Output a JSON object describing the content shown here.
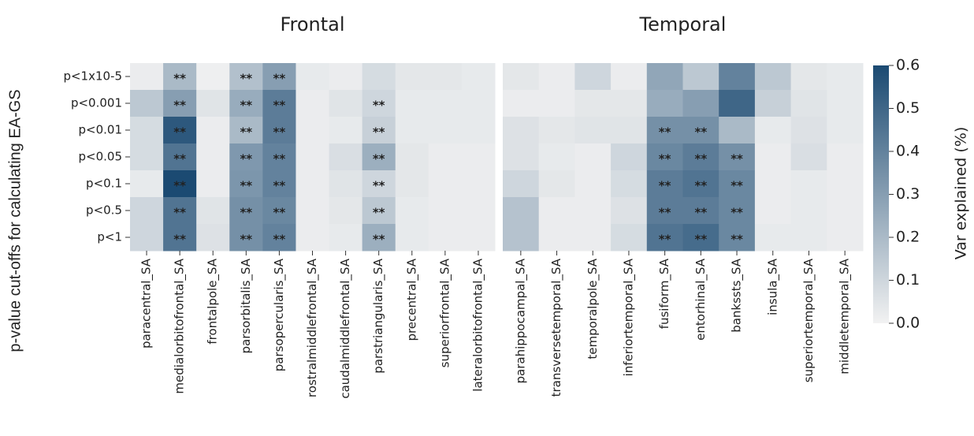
{
  "chart_data": [
    {
      "type": "heatmap",
      "title": "Frontal",
      "ylabel": "p-value cut-offs for calculating EA-GS",
      "rows": [
        "p<1x10-5",
        "p<0.001",
        "p<0.01",
        "p<0.05",
        "p<0.1",
        "p<0.5",
        "p<1"
      ],
      "categories": [
        "paracentral_SA",
        "medialorbitofrontal_SA",
        "frontalpole_SA",
        "parsorbitalis_SA",
        "parsopercularis_SA",
        "rostralmiddlefrontal_SA",
        "caudalmiddlefrontal_SA",
        "parstriangularis_SA",
        "precentral_SA",
        "superiorfrontal_SA",
        "lateralorbitofrontal_SA"
      ],
      "values": [
        [
          0.02,
          0.2,
          0.01,
          0.18,
          0.3,
          0.03,
          0.02,
          0.08,
          0.04,
          0.04,
          0.03
        ],
        [
          0.15,
          0.3,
          0.05,
          0.25,
          0.42,
          0.02,
          0.05,
          0.1,
          0.03,
          0.03,
          0.03
        ],
        [
          0.08,
          0.55,
          0.02,
          0.2,
          0.42,
          0.02,
          0.03,
          0.12,
          0.03,
          0.03,
          0.03
        ],
        [
          0.08,
          0.45,
          0.02,
          0.32,
          0.4,
          0.02,
          0.07,
          0.24,
          0.04,
          0.02,
          0.02
        ],
        [
          0.03,
          0.6,
          0.02,
          0.33,
          0.4,
          0.02,
          0.05,
          0.1,
          0.04,
          0.02,
          0.02
        ],
        [
          0.1,
          0.45,
          0.05,
          0.35,
          0.38,
          0.02,
          0.04,
          0.15,
          0.03,
          0.02,
          0.02
        ],
        [
          0.1,
          0.45,
          0.06,
          0.35,
          0.4,
          0.02,
          0.03,
          0.24,
          0.03,
          0.02,
          0.02
        ]
      ],
      "annotations": [
        [
          null,
          "**",
          null,
          "**",
          "**",
          null,
          null,
          null,
          null,
          null,
          null
        ],
        [
          null,
          "**",
          null,
          "**",
          "**",
          null,
          null,
          "**",
          null,
          null,
          null
        ],
        [
          null,
          "**",
          null,
          "**",
          "**",
          null,
          null,
          "**",
          null,
          null,
          null
        ],
        [
          null,
          "**",
          null,
          "**",
          "**",
          null,
          null,
          "**",
          null,
          null,
          null
        ],
        [
          null,
          "**",
          null,
          "**",
          "**",
          null,
          null,
          "**",
          null,
          null,
          null
        ],
        [
          null,
          "**",
          null,
          "**",
          "**",
          null,
          null,
          "**",
          null,
          null,
          null
        ],
        [
          null,
          "**",
          null,
          "**",
          "**",
          null,
          null,
          "**",
          null,
          null,
          null
        ]
      ]
    },
    {
      "type": "heatmap",
      "title": "Temporal",
      "categories": [
        "parahippocampal_SA",
        "transversetemporal_SA",
        "temporalpole_SA",
        "inferiortemporal_SA",
        "fusiform_SA",
        "entorhinal_SA",
        "bankssts_SA",
        "insula_SA",
        "superiortemporal_SA",
        "middletemporal_SA"
      ],
      "values": [
        [
          0.04,
          0.02,
          0.1,
          0.02,
          0.27,
          0.15,
          0.4,
          0.15,
          0.04,
          0.03
        ],
        [
          0.02,
          0.02,
          0.04,
          0.04,
          0.25,
          0.3,
          0.5,
          0.12,
          0.05,
          0.03
        ],
        [
          0.06,
          0.04,
          0.05,
          0.05,
          0.35,
          0.35,
          0.2,
          0.03,
          0.06,
          0.03
        ],
        [
          0.06,
          0.03,
          0.02,
          0.1,
          0.38,
          0.42,
          0.35,
          0.02,
          0.07,
          0.02
        ],
        [
          0.1,
          0.04,
          0.02,
          0.08,
          0.42,
          0.45,
          0.38,
          0.02,
          0.03,
          0.02
        ],
        [
          0.17,
          0.02,
          0.02,
          0.06,
          0.42,
          0.42,
          0.38,
          0.02,
          0.03,
          0.02
        ],
        [
          0.17,
          0.02,
          0.02,
          0.08,
          0.45,
          0.48,
          0.38,
          0.03,
          0.03,
          0.02
        ]
      ],
      "annotations": [
        [
          null,
          null,
          null,
          null,
          null,
          null,
          null,
          null,
          null,
          null
        ],
        [
          null,
          null,
          null,
          null,
          null,
          null,
          null,
          null,
          null,
          null
        ],
        [
          null,
          null,
          null,
          null,
          "**",
          "**",
          null,
          null,
          null,
          null
        ],
        [
          null,
          null,
          null,
          null,
          "**",
          "**",
          "**",
          null,
          null,
          null
        ],
        [
          null,
          null,
          null,
          null,
          "**",
          "**",
          "**",
          null,
          null,
          null
        ],
        [
          null,
          null,
          null,
          null,
          "**",
          "**",
          "**",
          null,
          null,
          null
        ],
        [
          null,
          null,
          null,
          null,
          "**",
          "**",
          "**",
          null,
          null,
          null
        ]
      ],
      "colorbar": {
        "label": "Var explained (%)",
        "zlim": [
          0,
          0.6
        ],
        "zticks": [
          {
            "value": 0,
            "label": "0.0"
          },
          0.1,
          0.2,
          0.3,
          0.4,
          0.5,
          0.6
        ],
        "colors": [
          "#f2f2f2",
          "#1b4a72"
        ]
      }
    }
  ]
}
